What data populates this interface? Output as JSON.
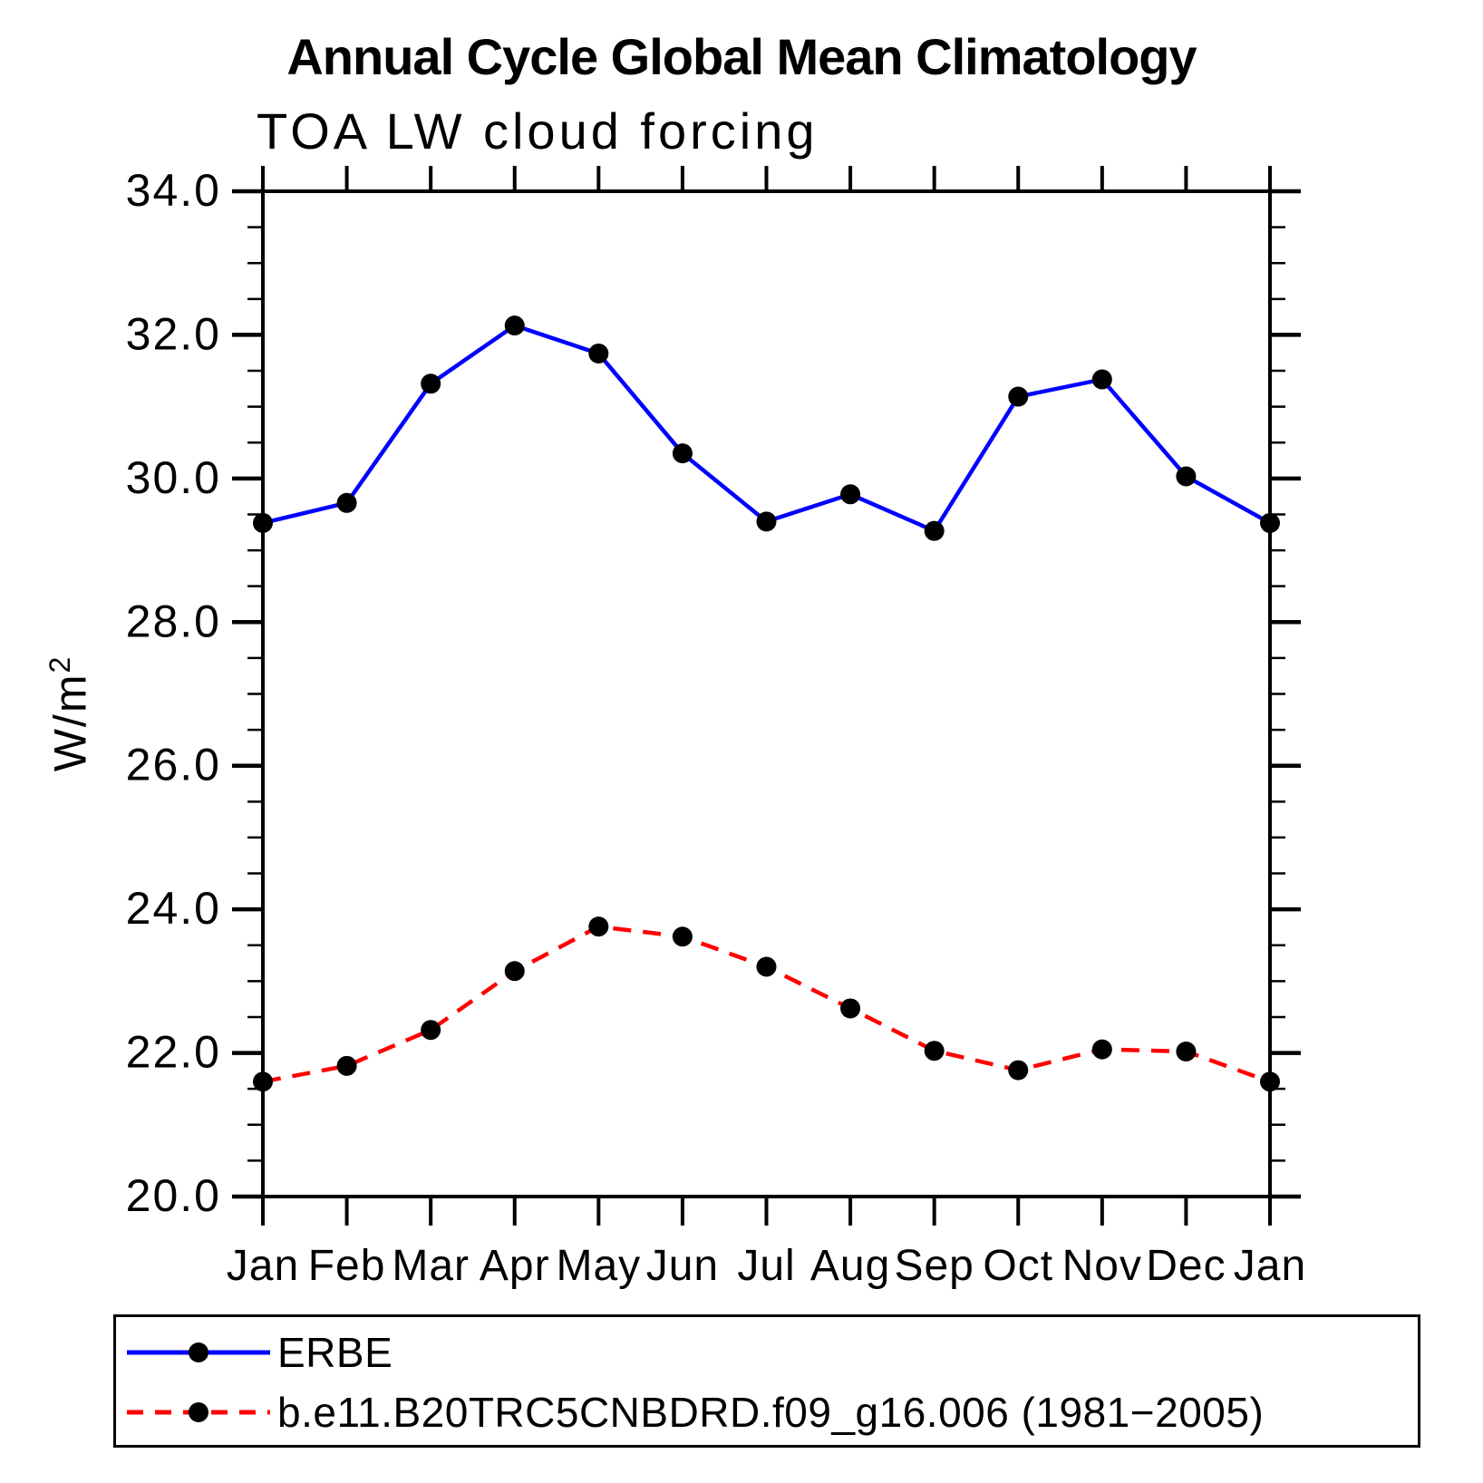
{
  "chart_data": {
    "type": "line",
    "title": "Annual Cycle Global Mean Climatology",
    "subtitle": "TOA LW cloud forcing",
    "ylabel_base": "W/m",
    "ylabel_exp": "2",
    "categories": [
      "Jan",
      "Feb",
      "Mar",
      "Apr",
      "May",
      "Jun",
      "Jul",
      "Aug",
      "Sep",
      "Oct",
      "Nov",
      "Dec",
      "Jan"
    ],
    "series": [
      {
        "name": "ERBE",
        "color": "#0000ff",
        "line_style": "solid",
        "marker": "filled-circle",
        "marker_color": "#000000",
        "values": [
          29.38,
          29.66,
          31.32,
          32.13,
          31.74,
          30.35,
          29.4,
          29.78,
          29.27,
          31.14,
          31.38,
          30.03,
          29.38
        ]
      },
      {
        "name": "b.e11.B20TRC5CNBDRD.f09_g16.006 (1981−2005)",
        "color": "#ff0000",
        "line_style": "dashed",
        "marker": "filled-circle",
        "marker_color": "#000000",
        "values": [
          21.6,
          21.82,
          22.32,
          23.14,
          23.76,
          23.62,
          23.2,
          22.62,
          22.03,
          21.76,
          22.05,
          22.02,
          21.6
        ]
      }
    ],
    "ylim": [
      20.0,
      34.0
    ],
    "ytick_values": [
      20,
      22,
      24,
      26,
      28,
      30,
      32,
      34
    ],
    "ytick_labels": [
      "20.0",
      "22.0",
      "24.0",
      "26.0",
      "28.0",
      "30.0",
      "32.0",
      "34.0"
    ],
    "yminor_step": 0.5,
    "grid": false,
    "legend_position": "bottom",
    "frame_color": "#000000"
  }
}
